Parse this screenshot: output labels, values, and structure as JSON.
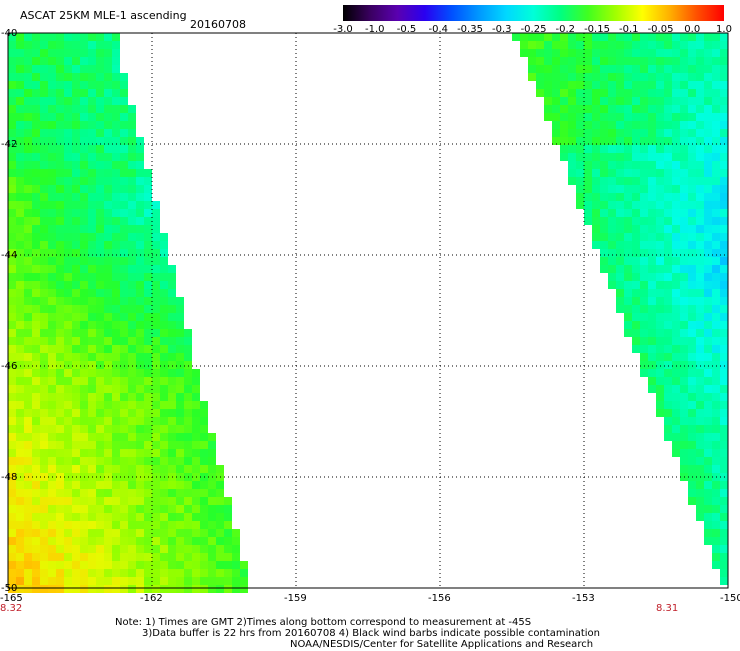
{
  "header": {
    "title": "ASCAT 25KM MLE-1 ascending",
    "date": "20160708"
  },
  "colorbar": {
    "labels": [
      "-3.0",
      "-1.0",
      "-0.5",
      "-0.4",
      "-0.35",
      "-0.3",
      "-0.25",
      "-0.2",
      "-0.15",
      "-0.1",
      "-0.05",
      "0.0",
      "1.0"
    ],
    "colors": [
      "#000000",
      "#3a0060",
      "#5a00b0",
      "#2a00f0",
      "#0050ff",
      "#0098ff",
      "#00d8ff",
      "#00ffd8",
      "#00ff80",
      "#40ff20",
      "#a0ff00",
      "#ffff00",
      "#ffb000",
      "#ff5000",
      "#ff0000"
    ]
  },
  "map": {
    "lat_labels": [
      "-40",
      "-42",
      "-44",
      "-46",
      "-48",
      "-50"
    ],
    "lon_labels": [
      "-165",
      "-162",
      "-159",
      "-156",
      "-153",
      "-150"
    ],
    "lat_range": [
      -50,
      -40
    ],
    "lon_range": [
      -165,
      -150
    ],
    "swath_labels": [
      "8.32",
      "8.31"
    ]
  },
  "notes": {
    "line1": "Note: 1) Times are GMT 2)Times along bottom correspond to measurement at -45S",
    "line2": "3)Data buffer is 22 hrs from 20160708 4) Black wind barbs indicate possible contamination",
    "line3": "NOAA/NESDIS/Center for Satellite Applications and Research"
  }
}
